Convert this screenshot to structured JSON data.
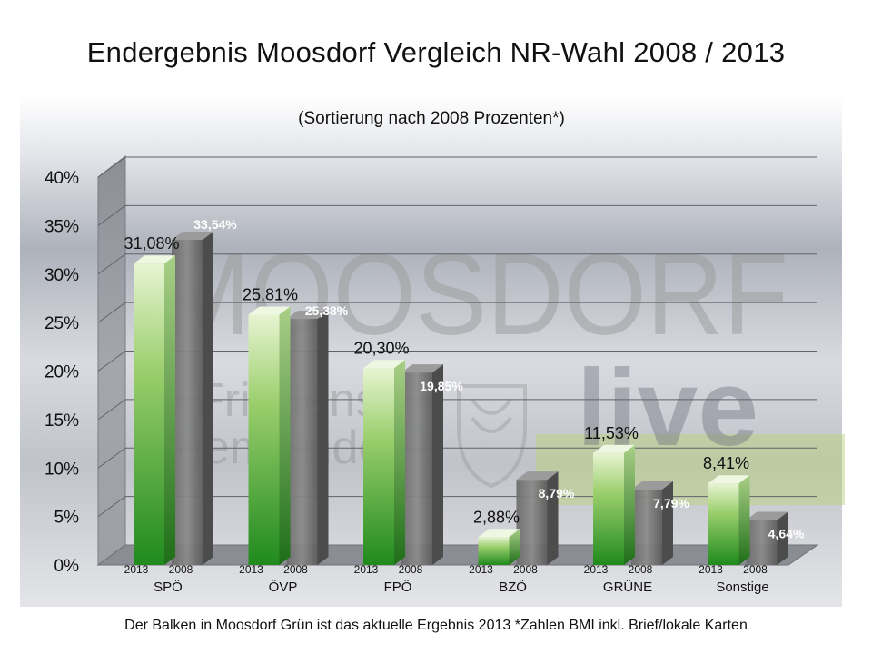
{
  "page": {
    "title": "Endergebnis Moosdorf  Vergleich NR-Wahl 2008 / 2013",
    "footnote": "Der Balken in Moosdorf Grün ist das aktuelle Ergebnis 2013 *Zahlen BMI inkl. Brief/lokale Karten"
  },
  "watermark": {
    "main_text": "MOOSDORF",
    "sub_text_1": "Friedens",
    "sub_text_2": "gemeinde",
    "live_text": "live"
  },
  "chart_data": {
    "type": "bar",
    "subtitle": "(Sortierung nach 2008 Prozenten*)",
    "categories": [
      "SPÖ",
      "ÖVP",
      "FPÖ",
      "BZÖ",
      "GRÜNE",
      "Sonstige"
    ],
    "series": [
      {
        "name": "2013",
        "values": [
          31.08,
          25.81,
          20.3,
          2.88,
          11.53,
          8.41
        ],
        "labels": [
          "31,08%",
          "25,81%",
          "20,30%",
          "2,88%",
          "11,53%",
          "8,41%"
        ],
        "color": "#3a9a2a"
      },
      {
        "name": "2008",
        "values": [
          33.54,
          25.38,
          19.85,
          8.79,
          7.79,
          4.64
        ],
        "labels": [
          "33,54%",
          "25,38%",
          "19,85%",
          "8,79%",
          "7,79%",
          "4,64%"
        ],
        "color": "#6f6f6f"
      }
    ],
    "ylim": [
      0,
      40
    ],
    "yticks": [
      0,
      5,
      10,
      15,
      20,
      25,
      30,
      35,
      40
    ],
    "ytick_labels": [
      "0%",
      "5%",
      "10%",
      "15%",
      "20%",
      "25%",
      "30%",
      "35%",
      "40%"
    ],
    "grid": true,
    "legend": "none"
  }
}
